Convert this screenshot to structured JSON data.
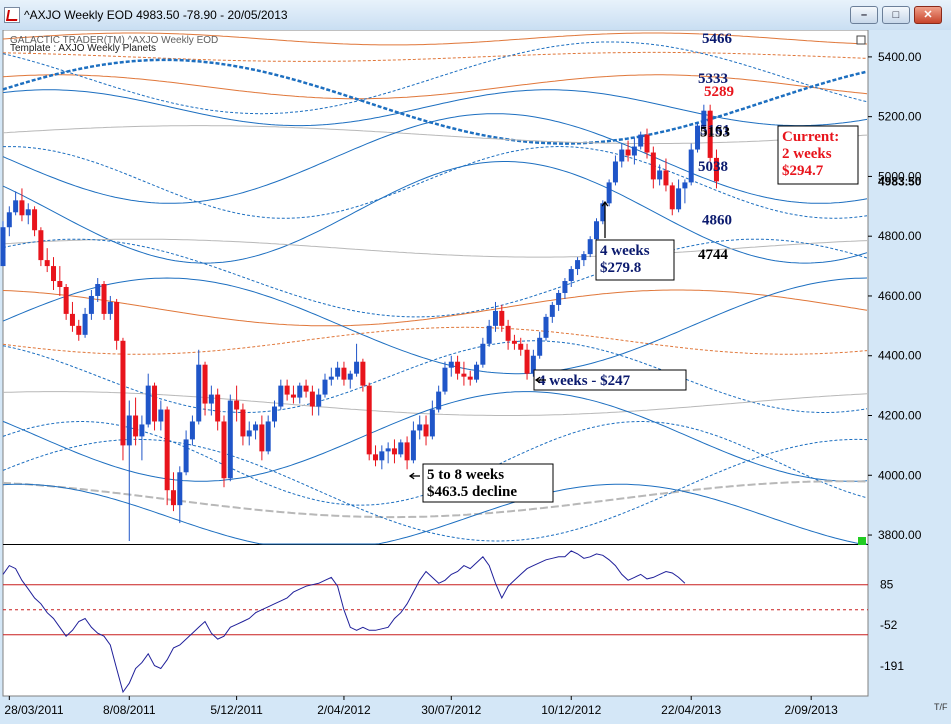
{
  "window": {
    "title": "^AXJO Weekly EOD   4983.50    -78.90 - 20/05/2013",
    "minimize_label": "–",
    "maximize_label": "□",
    "close_label": "✕"
  },
  "chart_header": {
    "line1": "GALACTIC TRADER(TM)    ^AXJO Weekly EOD",
    "line2": "Template : AXJO Weekly Planets"
  },
  "colors": {
    "background": "#ffffff",
    "up_candle": "#1f55c8",
    "down_candle": "#e8141c",
    "planet_line": "#1d6fc0",
    "orange_line": "#e0773a",
    "grey_line": "#b8b8b8",
    "dark_line": "#1a4fa8",
    "oscillator": "#20209a",
    "osc_band": "#c81e1e",
    "accent_green": "#22cc22"
  },
  "chart_data": {
    "type": "candlestick",
    "ylim": [
      3770,
      5490
    ],
    "y_ticks": [
      "5400.00",
      "5200.00",
      "5000.00",
      "4800.00",
      "4600.00",
      "4400.00",
      "4200.00",
      "4000.00",
      "3800.00"
    ],
    "last_price_label": "4983.50",
    "x_ticks": [
      "28/03/2011",
      "8/08/2011",
      "5/12/2011",
      "2/04/2012",
      "30/07/2012",
      "10/12/2012",
      "22/04/2013",
      "2/09/2013"
    ],
    "x_start": "2011-03-21",
    "x_end": "2013-11-04",
    "price_series": [
      [
        "2011-03-21",
        4700,
        4850,
        4700,
        4830
      ],
      [
        "2011-03-28",
        4830,
        4900,
        4800,
        4880
      ],
      [
        "2011-04-04",
        4880,
        4950,
        4870,
        4920
      ],
      [
        "2011-04-11",
        4920,
        4960,
        4850,
        4870
      ],
      [
        "2011-04-18",
        4870,
        4910,
        4840,
        4890
      ],
      [
        "2011-04-25",
        4890,
        4900,
        4800,
        4820
      ],
      [
        "2011-05-02",
        4820,
        4830,
        4700,
        4720
      ],
      [
        "2011-05-09",
        4720,
        4760,
        4680,
        4700
      ],
      [
        "2011-05-16",
        4700,
        4730,
        4620,
        4650
      ],
      [
        "2011-05-23",
        4650,
        4700,
        4600,
        4630
      ],
      [
        "2011-05-30",
        4630,
        4640,
        4520,
        4540
      ],
      [
        "2011-06-06",
        4540,
        4580,
        4480,
        4500
      ],
      [
        "2011-06-13",
        4500,
        4520,
        4450,
        4470
      ],
      [
        "2011-06-20",
        4470,
        4560,
        4460,
        4540
      ],
      [
        "2011-06-27",
        4540,
        4620,
        4520,
        4600
      ],
      [
        "2011-07-04",
        4600,
        4660,
        4580,
        4640
      ],
      [
        "2011-07-11",
        4640,
        4650,
        4520,
        4540
      ],
      [
        "2011-07-18",
        4540,
        4600,
        4520,
        4580
      ],
      [
        "2011-07-25",
        4580,
        4590,
        4420,
        4450
      ],
      [
        "2011-08-01",
        4450,
        4460,
        4050,
        4100
      ],
      [
        "2011-08-08",
        4100,
        4250,
        3780,
        4200
      ],
      [
        "2011-08-15",
        4200,
        4260,
        4100,
        4130
      ],
      [
        "2011-08-22",
        4130,
        4200,
        4050,
        4170
      ],
      [
        "2011-08-29",
        4170,
        4340,
        4160,
        4300
      ],
      [
        "2011-09-05",
        4300,
        4310,
        4150,
        4180
      ],
      [
        "2011-09-12",
        4180,
        4250,
        4150,
        4220
      ],
      [
        "2011-09-19",
        4220,
        4230,
        3900,
        3950
      ],
      [
        "2011-09-26",
        3950,
        4010,
        3880,
        3900
      ],
      [
        "2011-10-03",
        3900,
        4030,
        3840,
        4010
      ],
      [
        "2011-10-10",
        4010,
        4150,
        4000,
        4120
      ],
      [
        "2011-10-17",
        4120,
        4200,
        4100,
        4180
      ],
      [
        "2011-10-24",
        4180,
        4420,
        4170,
        4370
      ],
      [
        "2011-10-31",
        4370,
        4380,
        4200,
        4240
      ],
      [
        "2011-11-07",
        4240,
        4300,
        4200,
        4270
      ],
      [
        "2011-11-14",
        4270,
        4290,
        4150,
        4180
      ],
      [
        "2011-11-21",
        4180,
        4200,
        3960,
        3990
      ],
      [
        "2011-11-28",
        3990,
        4270,
        3980,
        4250
      ],
      [
        "2011-12-05",
        4250,
        4300,
        4180,
        4220
      ],
      [
        "2011-12-12",
        4220,
        4240,
        4100,
        4130
      ],
      [
        "2011-12-19",
        4130,
        4180,
        4100,
        4150
      ],
      [
        "2011-12-26",
        4150,
        4180,
        4120,
        4170
      ],
      [
        "2012-01-02",
        4170,
        4200,
        4050,
        4080
      ],
      [
        "2012-01-09",
        4080,
        4200,
        4070,
        4180
      ],
      [
        "2012-01-16",
        4180,
        4250,
        4160,
        4230
      ],
      [
        "2012-01-23",
        4230,
        4320,
        4220,
        4300
      ],
      [
        "2012-01-30",
        4300,
        4320,
        4250,
        4270
      ],
      [
        "2012-02-06",
        4270,
        4300,
        4240,
        4260
      ],
      [
        "2012-02-13",
        4260,
        4310,
        4240,
        4300
      ],
      [
        "2012-02-20",
        4300,
        4320,
        4260,
        4280
      ],
      [
        "2012-02-27",
        4280,
        4300,
        4200,
        4230
      ],
      [
        "2012-03-05",
        4230,
        4290,
        4200,
        4270
      ],
      [
        "2012-03-12",
        4270,
        4340,
        4260,
        4320
      ],
      [
        "2012-03-19",
        4320,
        4360,
        4300,
        4330
      ],
      [
        "2012-03-26",
        4330,
        4380,
        4320,
        4360
      ],
      [
        "2012-04-02",
        4360,
        4380,
        4300,
        4320
      ],
      [
        "2012-04-09",
        4320,
        4350,
        4290,
        4340
      ],
      [
        "2012-04-16",
        4340,
        4440,
        4330,
        4380
      ],
      [
        "2012-04-23",
        4380,
        4390,
        4280,
        4300
      ],
      [
        "2012-04-30",
        4300,
        4310,
        4050,
        4070
      ],
      [
        "2012-05-07",
        4070,
        4100,
        4030,
        4050
      ],
      [
        "2012-05-14",
        4050,
        4100,
        4020,
        4080
      ],
      [
        "2012-05-21",
        4080,
        4110,
        4040,
        4090
      ],
      [
        "2012-05-28",
        4090,
        4120,
        4040,
        4070
      ],
      [
        "2012-06-04",
        4070,
        4120,
        4060,
        4110
      ],
      [
        "2012-06-11",
        4110,
        4130,
        4020,
        4050
      ],
      [
        "2012-06-18",
        4050,
        4180,
        4040,
        4150
      ],
      [
        "2012-06-25",
        4150,
        4200,
        4120,
        4170
      ],
      [
        "2012-07-02",
        4170,
        4200,
        4100,
        4130
      ],
      [
        "2012-07-09",
        4130,
        4250,
        4120,
        4220
      ],
      [
        "2012-07-16",
        4220,
        4300,
        4210,
        4280
      ],
      [
        "2012-07-23",
        4280,
        4380,
        4270,
        4360
      ],
      [
        "2012-07-30",
        4360,
        4400,
        4330,
        4380
      ],
      [
        "2012-08-06",
        4380,
        4400,
        4320,
        4340
      ],
      [
        "2012-08-13",
        4340,
        4380,
        4300,
        4330
      ],
      [
        "2012-08-20",
        4330,
        4350,
        4300,
        4320
      ],
      [
        "2012-08-27",
        4320,
        4380,
        4310,
        4370
      ],
      [
        "2012-09-03",
        4370,
        4460,
        4360,
        4440
      ],
      [
        "2012-09-10",
        4440,
        4520,
        4430,
        4500
      ],
      [
        "2012-09-17",
        4500,
        4580,
        4480,
        4550
      ],
      [
        "2012-09-24",
        4550,
        4570,
        4480,
        4500
      ],
      [
        "2012-10-01",
        4500,
        4520,
        4420,
        4450
      ],
      [
        "2012-10-08",
        4450,
        4470,
        4420,
        4440
      ],
      [
        "2012-10-15",
        4440,
        4460,
        4400,
        4420
      ],
      [
        "2012-10-22",
        4420,
        4440,
        4320,
        4340
      ],
      [
        "2012-10-29",
        4340,
        4420,
        4330,
        4400
      ],
      [
        "2012-11-05",
        4400,
        4480,
        4390,
        4460
      ],
      [
        "2012-11-12",
        4460,
        4540,
        4450,
        4530
      ],
      [
        "2012-11-19",
        4530,
        4580,
        4510,
        4570
      ],
      [
        "2012-11-26",
        4570,
        4620,
        4550,
        4610
      ],
      [
        "2012-12-03",
        4610,
        4660,
        4590,
        4650
      ],
      [
        "2012-12-10",
        4650,
        4700,
        4630,
        4690
      ],
      [
        "2012-12-17",
        4690,
        4730,
        4670,
        4720
      ],
      [
        "2012-12-24",
        4720,
        4750,
        4700,
        4740
      ],
      [
        "2012-12-31",
        4740,
        4800,
        4730,
        4790
      ],
      [
        "2013-01-07",
        4790,
        4860,
        4780,
        4850
      ],
      [
        "2013-01-14",
        4850,
        4920,
        4840,
        4910
      ],
      [
        "2013-01-21",
        4910,
        4990,
        4900,
        4980
      ],
      [
        "2013-01-28",
        4980,
        5070,
        4970,
        5050
      ],
      [
        "2013-02-04",
        5050,
        5110,
        5030,
        5090
      ],
      [
        "2013-02-11",
        5090,
        5120,
        5050,
        5070
      ],
      [
        "2013-02-18",
        5070,
        5130,
        5040,
        5100
      ],
      [
        "2013-02-25",
        5100,
        5150,
        5090,
        5140
      ],
      [
        "2013-03-04",
        5140,
        5160,
        5060,
        5080
      ],
      [
        "2013-03-11",
        5080,
        5100,
        4960,
        4990
      ],
      [
        "2013-03-18",
        4990,
        5040,
        4970,
        5020
      ],
      [
        "2013-03-25",
        5020,
        5060,
        4950,
        4970
      ],
      [
        "2013-04-01",
        4970,
        4980,
        4870,
        4890
      ],
      [
        "2013-04-08",
        4890,
        4990,
        4880,
        4960
      ],
      [
        "2013-04-15",
        4960,
        4990,
        4910,
        4980
      ],
      [
        "2013-04-22",
        4980,
        5110,
        4970,
        5090
      ],
      [
        "2013-04-29",
        5090,
        5180,
        5080,
        5170
      ],
      [
        "2013-05-06",
        5170,
        5240,
        5160,
        5220
      ],
      [
        "2013-05-13",
        5220,
        5240,
        5050,
        5062
      ],
      [
        "2013-05-20",
        5062,
        5090,
        4960,
        4983.5
      ]
    ],
    "level_labels": [
      {
        "text": "5466",
        "value": 5466,
        "color": "#0b1a6e"
      },
      {
        "text": "5333",
        "value": 5333,
        "color": "#0b1a6e"
      },
      {
        "text": "5289",
        "value": 5289,
        "color": "#e8141c"
      },
      {
        "text": "5161",
        "value": 5161,
        "color": "#0b1a6e"
      },
      {
        "text": "5153",
        "value": 5153,
        "color": "#000000"
      },
      {
        "text": "5038",
        "value": 5038,
        "color": "#0b1a6e"
      },
      {
        "text": "4860",
        "value": 4860,
        "color": "#0b1a6e"
      },
      {
        "text": "4744",
        "value": 4744,
        "color": "#000000"
      }
    ],
    "annotations": [
      {
        "lines": [
          "Current:",
          "2 weeks",
          "$294.7"
        ],
        "color": "#e8141c"
      },
      {
        "lines": [
          "4 weeks",
          "$279.8"
        ],
        "color": "#0b1a6e"
      },
      {
        "lines": [
          "4 weeks - $247"
        ],
        "color": "#0b1a6e"
      },
      {
        "lines": [
          "5 to 8 weeks",
          "$463.5 decline"
        ],
        "color": "#000000"
      }
    ],
    "oscillator": {
      "y_ticks": [
        "85",
        "-52",
        "-191"
      ],
      "ylim": [
        -280,
        210
      ],
      "bands": [
        85,
        0,
        -85
      ],
      "values": [
        120,
        150,
        140,
        100,
        70,
        40,
        20,
        -10,
        -30,
        -60,
        -90,
        -70,
        -40,
        -30,
        -60,
        -80,
        -90,
        -120,
        -200,
        -280,
        -250,
        -200,
        -180,
        -150,
        -190,
        -200,
        -170,
        -130,
        -120,
        -100,
        -80,
        -60,
        -40,
        -80,
        -100,
        -90,
        -60,
        -50,
        -40,
        -30,
        -10,
        0,
        10,
        20,
        30,
        40,
        60,
        70,
        80,
        85,
        90,
        100,
        110,
        80,
        0,
        -60,
        -70,
        -60,
        -70,
        -70,
        -65,
        -60,
        -30,
        -10,
        20,
        60,
        100,
        130,
        110,
        90,
        100,
        120,
        130,
        150,
        140,
        160,
        180,
        150,
        90,
        40,
        80,
        100,
        120,
        140,
        150,
        160,
        170,
        175,
        180,
        180,
        200,
        190,
        175,
        180,
        190,
        185,
        170,
        150,
        120,
        100,
        110,
        120,
        105,
        110,
        120,
        130,
        125,
        110,
        90
      ]
    }
  }
}
